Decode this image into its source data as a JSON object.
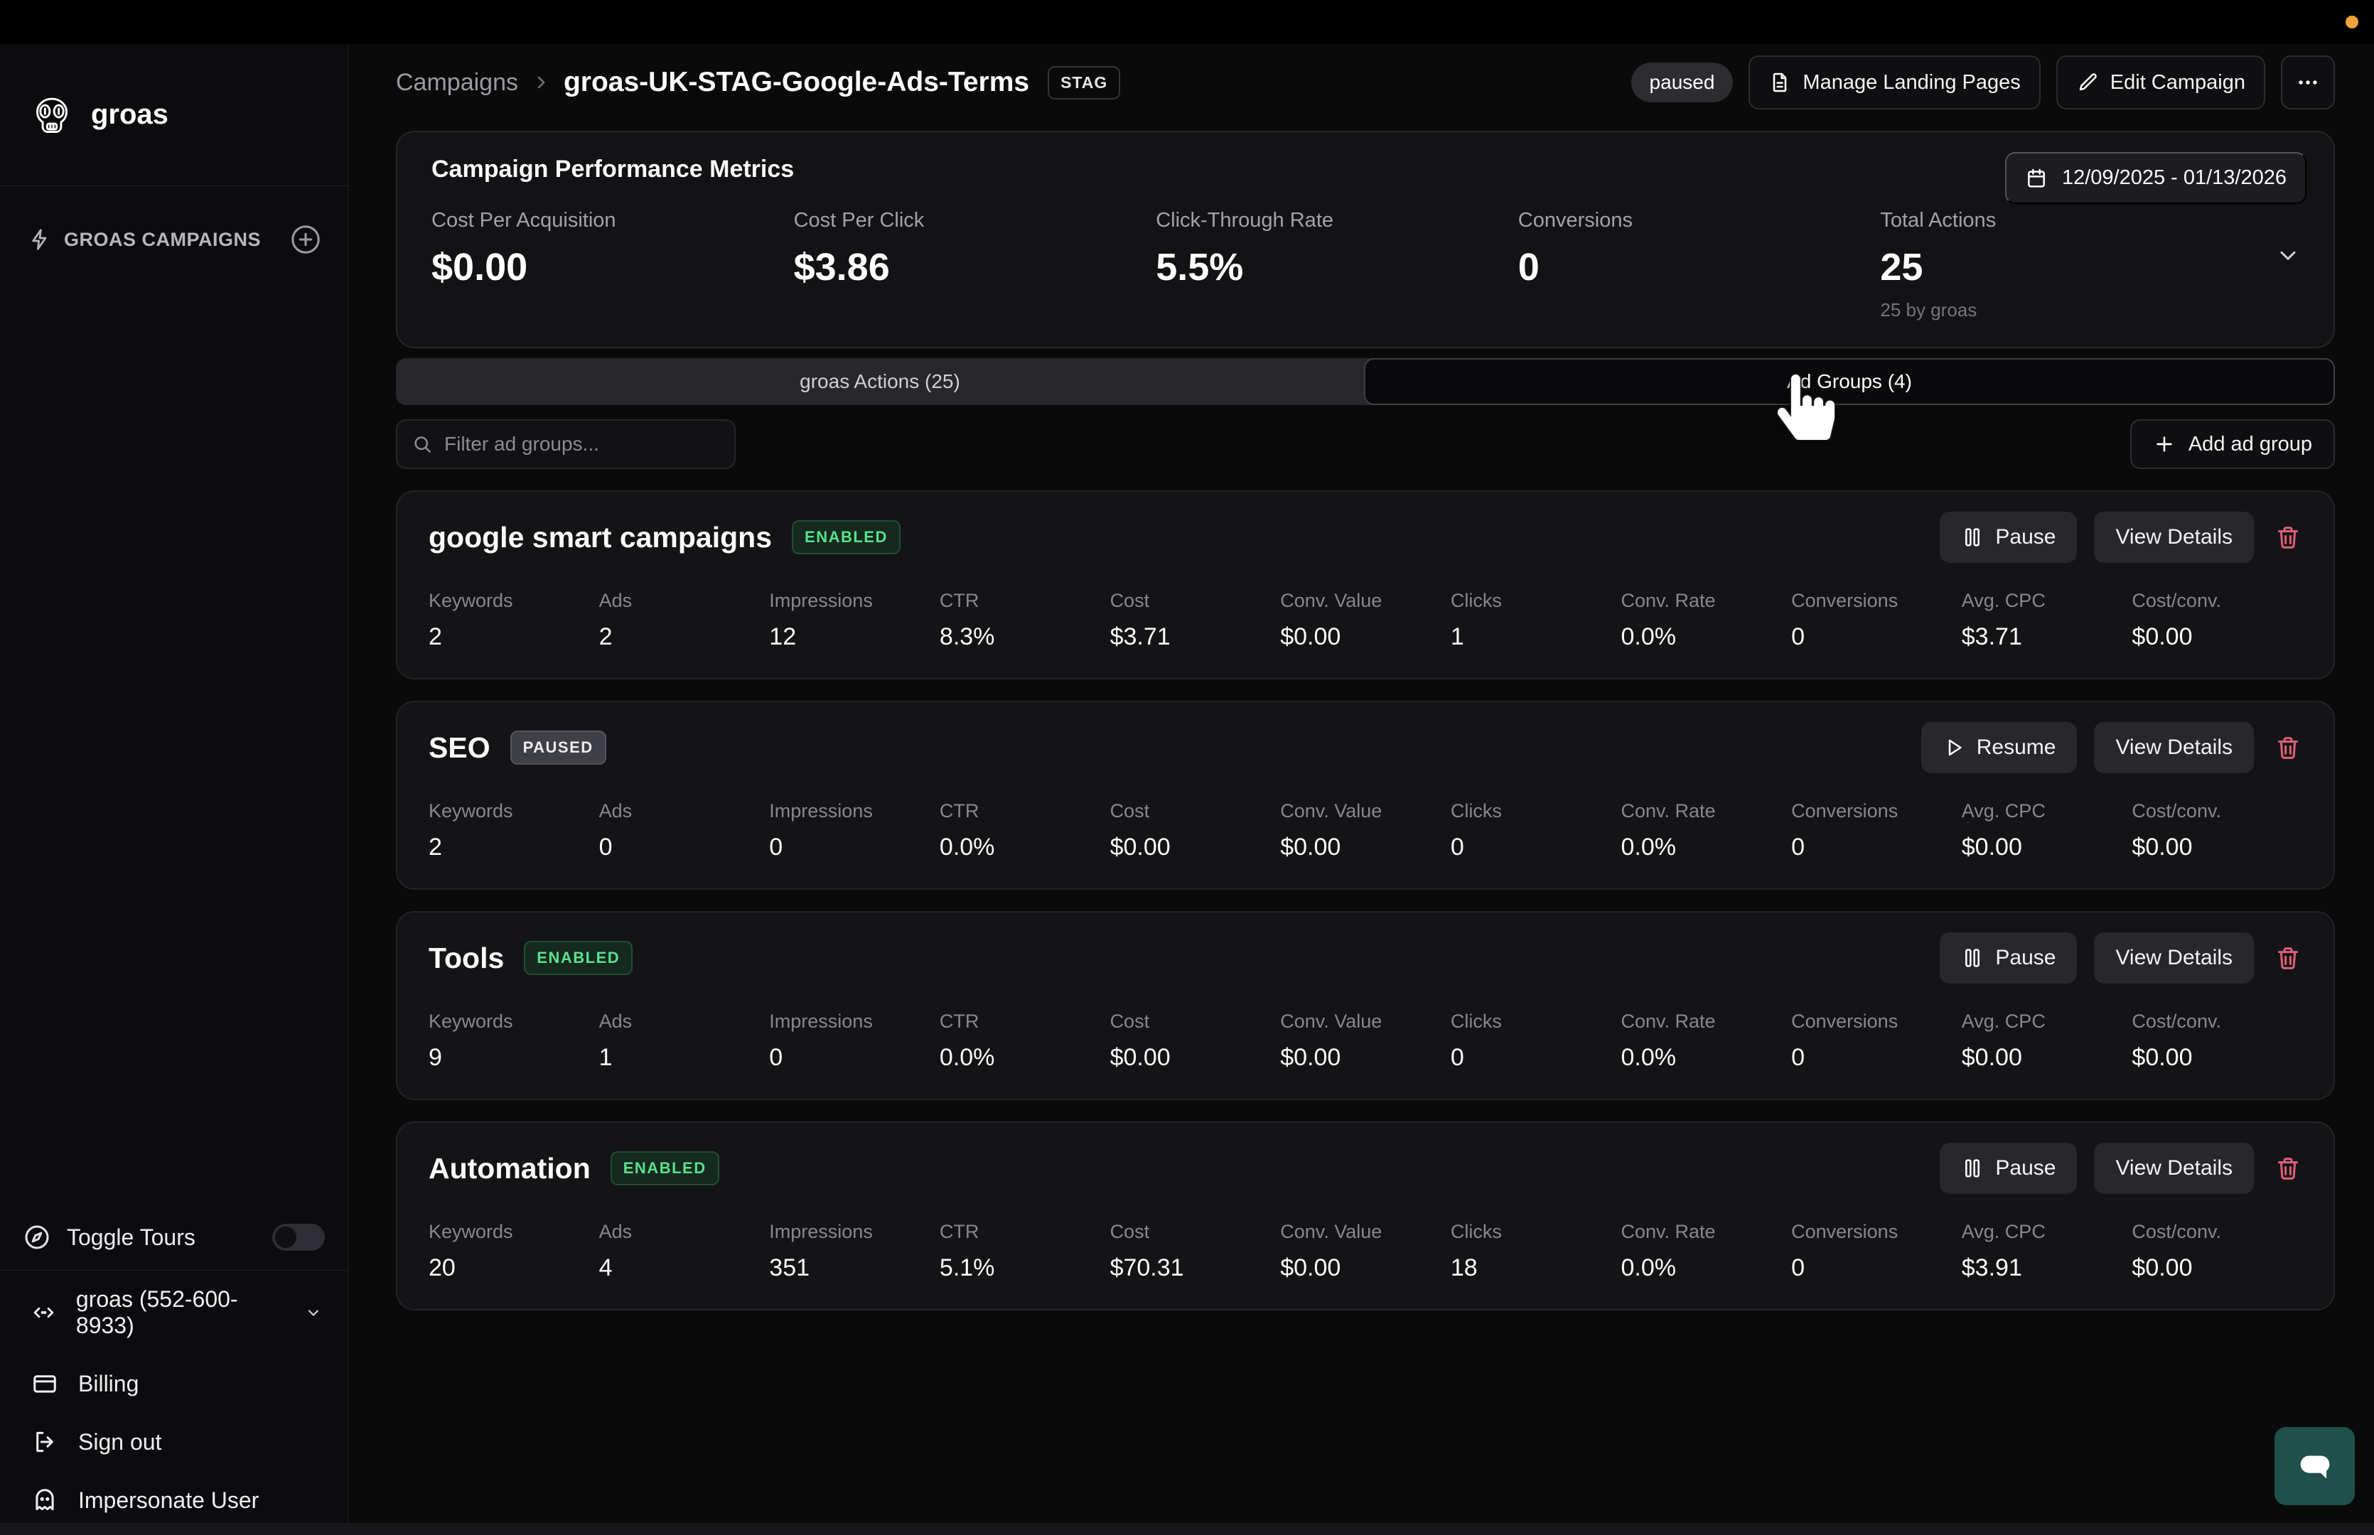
{
  "sidebar": {
    "brand": "groas",
    "campaigns_nav_label": "GROAS CAMPAIGNS",
    "toggle_tours_label": "Toggle Tours",
    "account_label": "groas (552-600-8933)",
    "billing_label": "Billing",
    "sign_out_label": "Sign out",
    "impersonate_label": "Impersonate User"
  },
  "header": {
    "breadcrumb_root": "Campaigns",
    "title": "groas-UK-STAG-Google-Ads-Terms",
    "env_badge": "STAG",
    "status_badge": "paused",
    "manage_landing_pages_label": "Manage Landing Pages",
    "edit_campaign_label": "Edit Campaign"
  },
  "metrics": {
    "title": "Campaign Performance Metrics",
    "date_range": "12/09/2025 - 01/13/2026",
    "items": [
      {
        "label": "Cost Per Acquisition",
        "value": "$0.00"
      },
      {
        "label": "Cost Per Click",
        "value": "$3.86"
      },
      {
        "label": "Click-Through Rate",
        "value": "5.5%"
      },
      {
        "label": "Conversions",
        "value": "0"
      },
      {
        "label": "Total Actions",
        "value": "25",
        "sub": "25 by groas"
      }
    ]
  },
  "tabs": {
    "actions_label": "groas Actions (25)",
    "ad_groups_label": "Ad Groups (4)"
  },
  "toolbar": {
    "filter_placeholder": "Filter ad groups...",
    "add_ad_group_label": "Add ad group"
  },
  "view_details_label": "View Details",
  "stat_labels": [
    "Keywords",
    "Ads",
    "Impressions",
    "CTR",
    "Cost",
    "Conv. Value",
    "Clicks",
    "Conv. Rate",
    "Conversions",
    "Avg. CPC",
    "Cost/conv."
  ],
  "ad_groups": [
    {
      "name": "google smart campaigns",
      "status": "ENABLED",
      "action_label": "Pause",
      "stats": [
        "2",
        "2",
        "12",
        "8.3%",
        "$3.71",
        "$0.00",
        "1",
        "0.0%",
        "0",
        "$3.71",
        "$0.00"
      ]
    },
    {
      "name": "SEO",
      "status": "PAUSED",
      "action_label": "Resume",
      "stats": [
        "2",
        "0",
        "0",
        "0.0%",
        "$0.00",
        "$0.00",
        "0",
        "0.0%",
        "0",
        "$0.00",
        "$0.00"
      ]
    },
    {
      "name": "Tools",
      "status": "ENABLED",
      "action_label": "Pause",
      "stats": [
        "9",
        "1",
        "0",
        "0.0%",
        "$0.00",
        "$0.00",
        "0",
        "0.0%",
        "0",
        "$0.00",
        "$0.00"
      ]
    },
    {
      "name": "Automation",
      "status": "ENABLED",
      "action_label": "Pause",
      "stats": [
        "20",
        "4",
        "351",
        "5.1%",
        "$70.31",
        "$0.00",
        "18",
        "0.0%",
        "0",
        "$3.91",
        "$0.00"
      ]
    }
  ],
  "colors": {
    "enabled_green": "#5be08e",
    "danger_rose": "#e0607a",
    "chat_teal": "#20504b",
    "record_dot_orange": "#f2a33c"
  }
}
